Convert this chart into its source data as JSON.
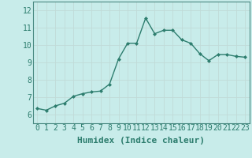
{
  "x": [
    0,
    1,
    2,
    3,
    4,
    5,
    6,
    7,
    8,
    9,
    10,
    11,
    12,
    13,
    14,
    15,
    16,
    17,
    18,
    19,
    20,
    21,
    22,
    23
  ],
  "y": [
    6.35,
    6.25,
    6.5,
    6.65,
    7.05,
    7.2,
    7.3,
    7.35,
    7.75,
    9.2,
    10.1,
    10.1,
    11.55,
    10.65,
    10.85,
    10.85,
    10.3,
    10.1,
    9.5,
    9.1,
    9.45,
    9.45,
    9.35,
    9.3
  ],
  "line_color": "#2d7d6e",
  "bg_color": "#c8ecea",
  "grid_color": "#c0dbd8",
  "xlabel": "Humidex (Indice chaleur)",
  "ylim_min": 5.5,
  "ylim_max": 12.5,
  "xlim_min": -0.5,
  "xlim_max": 23.5,
  "yticks": [
    6,
    7,
    8,
    9,
    10,
    11,
    12
  ],
  "xticks": [
    0,
    1,
    2,
    3,
    4,
    5,
    6,
    7,
    8,
    9,
    10,
    11,
    12,
    13,
    14,
    15,
    16,
    17,
    18,
    19,
    20,
    21,
    22,
    23
  ],
  "marker": "D",
  "marker_size": 2.0,
  "line_width": 1.0,
  "xlabel_fontsize": 8,
  "tick_fontsize": 7,
  "spine_color": "#4a8a82"
}
